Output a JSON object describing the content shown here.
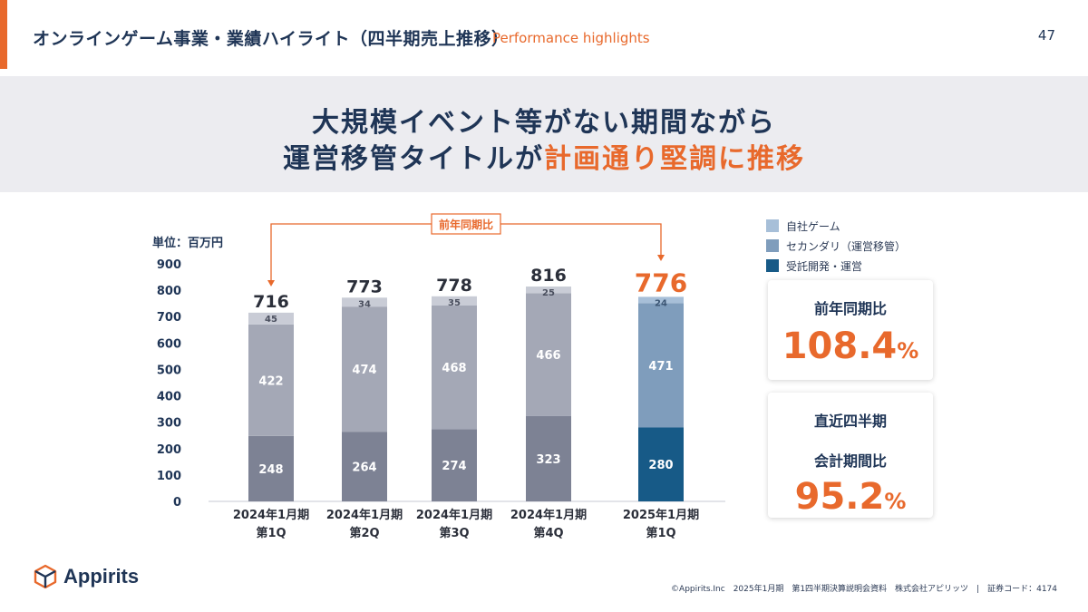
{
  "header": {
    "title": "オンラインゲーム事業・業績ハイライト（四半期売上推移）",
    "subtitle": "Performance highlights",
    "page_number": "47"
  },
  "banner": {
    "line1": "大規模イベント等がない期間ながら",
    "line2_prefix": "運営移管タイトルが",
    "line2_highlight": "計画通り堅調に推移"
  },
  "colors": {
    "accent": "#e8692c",
    "navy": "#1f3556",
    "own_games": "#a7bfd8",
    "own_games_past": "#c9ccd6",
    "secondary": "#7f9dbc",
    "secondary_past": "#a4a8b6",
    "contract": "#175a87",
    "contract_past": "#7d8294"
  },
  "legend": {
    "own_games": "自社ゲーム",
    "secondary": "セカンダリ（運営移管）",
    "contract": "受託開発・運営"
  },
  "chart_data": {
    "type": "bar",
    "stacked": true,
    "unit_label": "単位：百万円",
    "yoy_label": "前年同期比",
    "ylim": [
      0,
      900
    ],
    "y_ticks": [
      "0",
      "100",
      "200",
      "300",
      "400",
      "500",
      "600",
      "700",
      "800",
      "900"
    ],
    "categories": [
      {
        "line1": "2024年1月期",
        "line2": "第1Q"
      },
      {
        "line1": "2024年1月期",
        "line2": "第2Q"
      },
      {
        "line1": "2024年1月期",
        "line2": "第3Q"
      },
      {
        "line1": "2024年1月期",
        "line2": "第4Q"
      },
      {
        "line1": "2025年1月期",
        "line2": "第1Q"
      }
    ],
    "series": [
      {
        "name": "受託開発・運営",
        "values": [
          248,
          264,
          274,
          323,
          280
        ]
      },
      {
        "name": "セカンダリ（運営移管）",
        "values": [
          422,
          474,
          468,
          466,
          471
        ]
      },
      {
        "name": "自社ゲーム",
        "values": [
          45,
          34,
          35,
          25,
          24
        ]
      }
    ],
    "totals": [
      "716",
      "773",
      "778",
      "816",
      "776"
    ],
    "highlight_index": 4
  },
  "cards": {
    "yoy": {
      "label": "前年同期比",
      "value": "108.4",
      "unit": "%"
    },
    "qoq": {
      "label_line1": "直近四半期",
      "label_line2": "会計期間比",
      "value": "95.2",
      "unit": "%"
    }
  },
  "logo": {
    "text": "Appirits"
  },
  "footer": {
    "text": "©Appirits.Inc　2025年1月期　第1四半期決算説明会資料　株式会社アピリッツ　|　証券コード：4174"
  }
}
